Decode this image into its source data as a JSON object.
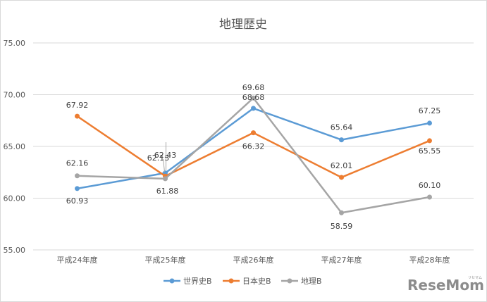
{
  "chart_data": {
    "type": "line",
    "title": "地理歴史",
    "categories": [
      "平成24年度",
      "平成25年度",
      "平成26年度",
      "平成27年度",
      "平成28年度"
    ],
    "ylim": [
      55,
      75
    ],
    "yticks": [
      "55.00",
      "60.00",
      "65.00",
      "70.00",
      "75.00"
    ],
    "grid": true,
    "legend_position": "bottom",
    "series": [
      {
        "name": "世界史B",
        "color": "#5b9bd5",
        "values": [
          60.93,
          62.43,
          68.68,
          65.64,
          67.25
        ],
        "labels": [
          "60.93",
          "62.43",
          "68.68",
          "65.64",
          "67.25"
        ]
      },
      {
        "name": "日本史B",
        "color": "#ed7d31",
        "values": [
          67.92,
          62.13,
          66.32,
          62.01,
          65.55
        ],
        "labels": [
          "67.92",
          "62.13",
          "66.32",
          "62.01",
          "65.55"
        ]
      },
      {
        "name": "地理B",
        "color": "#a5a5a5",
        "values": [
          62.16,
          61.88,
          69.68,
          58.59,
          60.1
        ],
        "labels": [
          "62.16",
          "61.88",
          "69.68",
          "58.59",
          "60.10"
        ]
      }
    ]
  },
  "watermark": {
    "logo_text": "ReseMom",
    "tagline": "リセマム"
  }
}
